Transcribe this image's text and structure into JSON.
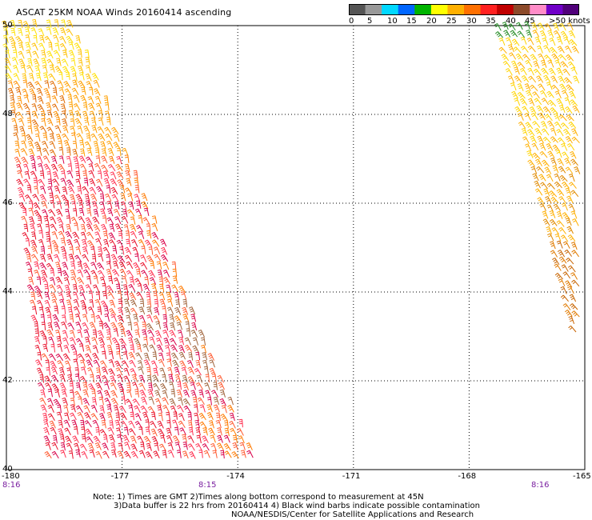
{
  "title": "ASCAT 25KM NOAA Winds 20160414 ascending",
  "legend": {
    "colors": [
      "#555555",
      "#999999",
      "#00d8ff",
      "#0066ff",
      "#00b400",
      "#ffff00",
      "#ffb000",
      "#ff7000",
      "#ff2020",
      "#c00000",
      "#8c4a2a",
      "#ff8cc8",
      "#7000c8",
      "#50007a"
    ],
    "labels": [
      "0",
      "5",
      "10",
      "15",
      "20",
      "25",
      "30",
      "35",
      "40",
      "45",
      ">50 knots"
    ]
  },
  "map": {
    "lon_labels": [
      "-180",
      "-177",
      "-174",
      "-171",
      "-168",
      "-165"
    ],
    "lat_labels": [
      "50",
      "48",
      "46",
      "44",
      "42",
      "40"
    ],
    "lon_range": [
      -180,
      -165
    ],
    "lat_range": [
      40,
      50
    ],
    "gridlines": true,
    "pass_times": [
      "8:16",
      "8:15",
      "8:16"
    ],
    "swaths": [
      {
        "name_hint": "west-swath",
        "lon_min_lat50": -180,
        "lon_max_lat50": -178.2,
        "lon_min_lat40": -178.8,
        "lon_max_lat40": -173.4
      },
      {
        "name_hint": "east-swath",
        "lon_min_lat50": -167.2,
        "lon_max_lat50": -165,
        "lon_min_lat43": -165.2,
        "lon_max_lat43": -165
      }
    ]
  },
  "notes": {
    "line1": "Note: 1) Times are GMT 2)Times along bottom correspond to measurement at 45N",
    "line2": "3)Data buffer is 22 hrs from 20160414 4) Black wind barbs indicate possible contamination",
    "line3": "NOAA/NESDIS/Center for Satellite Applications and Research"
  }
}
